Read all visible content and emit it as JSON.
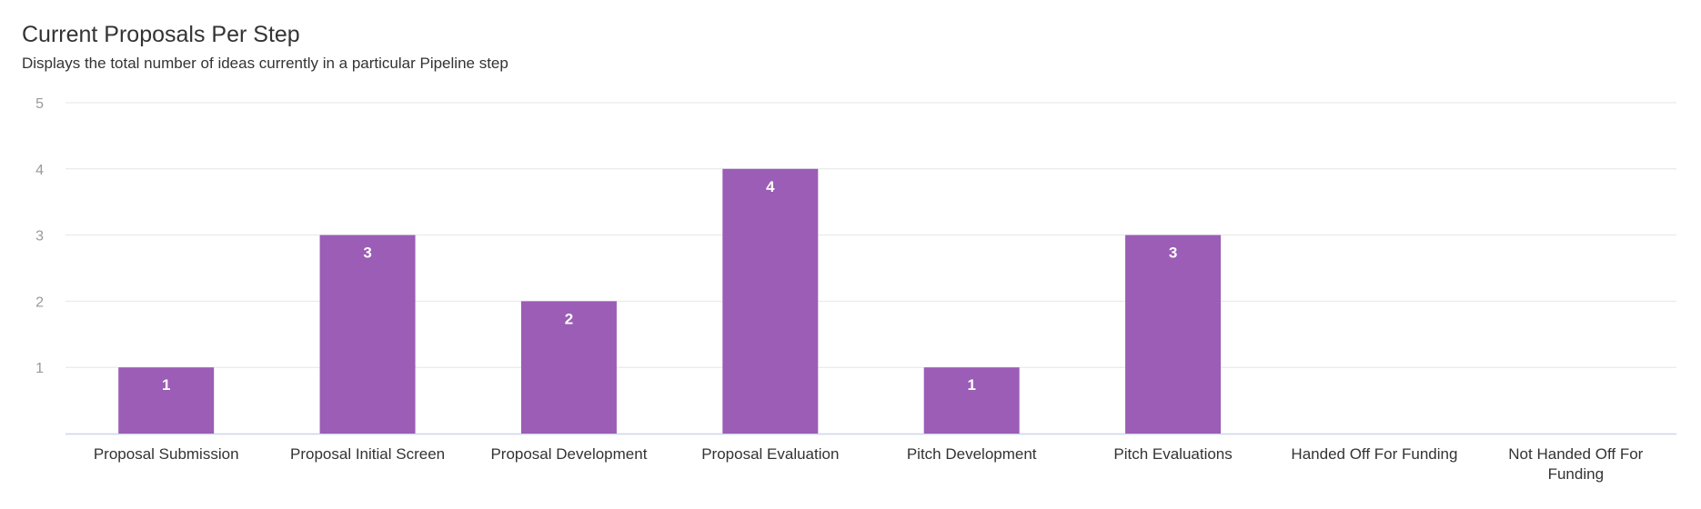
{
  "chart_data": {
    "type": "bar",
    "title": "Current Proposals Per Step",
    "subtitle": "Displays the total number of ideas currently in a particular Pipeline step",
    "categories": [
      [
        "Proposal Submission"
      ],
      [
        "Proposal Initial Screen"
      ],
      [
        "Proposal Development"
      ],
      [
        "Proposal Evaluation"
      ],
      [
        "Pitch Development"
      ],
      [
        "Pitch Evaluations"
      ],
      [
        "Handed Off For Funding"
      ],
      [
        "Not Handed Off For",
        "Funding"
      ]
    ],
    "values": [
      1,
      3,
      2,
      4,
      1,
      3,
      0,
      0
    ],
    "ylim": [
      0,
      5
    ],
    "yticks": [
      1,
      2,
      3,
      4,
      5
    ],
    "grid": true,
    "colors": {
      "bar": "#9b5db6",
      "grid": "#e6e6e6",
      "axis": "#ccd6eb"
    }
  }
}
